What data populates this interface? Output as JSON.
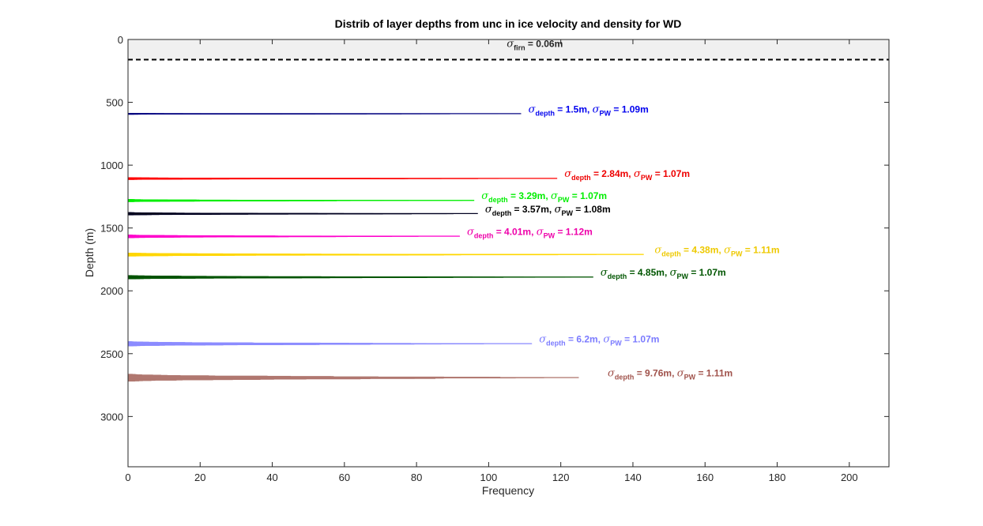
{
  "chart_data": {
    "type": "histogram",
    "title": "Distrib of layer depths from unc in ice velocity and density for WD",
    "xlabel": "Frequency",
    "ylabel": "Depth (m)",
    "xlim": [
      0,
      211
    ],
    "ylim": [
      0,
      3400
    ],
    "y_reversed": true,
    "xticks": [
      0,
      20,
      40,
      60,
      80,
      100,
      120,
      140,
      160,
      180,
      200
    ],
    "yticks": [
      0,
      500,
      1000,
      1500,
      2000,
      2500,
      3000
    ],
    "firn": {
      "depth": 160,
      "shade_color": "#f0f0f0",
      "line_style": "dashed",
      "label": {
        "sym": "σ",
        "sub": "firn",
        "text": " =  0.06m",
        "x": 105,
        "y": 60,
        "color": "#262626"
      }
    },
    "layers": [
      {
        "depth": 590,
        "spread": 1.5,
        "peak": 109,
        "color": "#00007f",
        "annotation": {
          "sym1": "σ",
          "sub1": "depth",
          "mid": " =  1.5m,  ",
          "sym2": "σ",
          "sub2": "PW",
          "end": " =  1.09m",
          "x": 111,
          "y": 580,
          "color": "#0000ee"
        }
      },
      {
        "depth": 1105,
        "spread": 2.84,
        "peak": 119,
        "color": "#ff0000",
        "annotation": {
          "sym1": "σ",
          "sub1": "depth",
          "mid": " =  2.84m,  ",
          "sym2": "σ",
          "sub2": "PW",
          "end": " =  1.07m",
          "x": 121,
          "y": 1095,
          "color": "#ee0000"
        }
      },
      {
        "depth": 1280,
        "spread": 3.29,
        "peak": 96,
        "color": "#00ee00",
        "annotation": {
          "sym1": "σ",
          "sub1": "depth",
          "mid": " =  3.29m,  ",
          "sym2": "σ",
          "sub2": "PW",
          "end": " =  1.07m",
          "x": 98,
          "y": 1270,
          "color": "#00ee00"
        }
      },
      {
        "depth": 1385,
        "spread": 3.57,
        "peak": 97,
        "color": "#000020",
        "annotation": {
          "sym1": "σ",
          "sub1": "depth",
          "mid": " =  3.57m,  ",
          "sym2": "σ",
          "sub2": "PW",
          "end": " =  1.08m",
          "x": 99,
          "y": 1375,
          "color": "#000000"
        }
      },
      {
        "depth": 1565,
        "spread": 4.01,
        "peak": 92,
        "color": "#ff00cc",
        "annotation": {
          "sym1": "σ",
          "sub1": "depth",
          "mid": " =  4.01m,  ",
          "sym2": "σ",
          "sub2": "PW",
          "end": " =  1.12m",
          "x": 94,
          "y": 1555,
          "color": "#ee00aa"
        }
      },
      {
        "depth": 1710,
        "spread": 4.38,
        "peak": 143,
        "color": "#ffd700",
        "annotation": {
          "sym1": "σ",
          "sub1": "depth",
          "mid": " =  4.38m,  ",
          "sym2": "σ",
          "sub2": "PW",
          "end": " =  1.11m",
          "x": 146,
          "y": 1700,
          "color": "#eec900"
        }
      },
      {
        "depth": 1890,
        "spread": 4.85,
        "peak": 129,
        "color": "#005500",
        "annotation": {
          "sym1": "σ",
          "sub1": "depth",
          "mid": " =  4.85m,  ",
          "sym2": "σ",
          "sub2": "PW",
          "end": " =  1.07m",
          "x": 131,
          "y": 1880,
          "color": "#005500"
        }
      },
      {
        "depth": 2420,
        "spread": 6.2,
        "peak": 112,
        "color": "#8c8cff",
        "annotation": {
          "sym1": "σ",
          "sub1": "depth",
          "mid": " =  6.2m,  ",
          "sym2": "σ",
          "sub2": "PW",
          "end": " =  1.07m",
          "x": 114,
          "y": 2410,
          "color": "#7b7bff"
        }
      },
      {
        "depth": 2690,
        "spread": 9.76,
        "peak": 125,
        "color": "#b07870",
        "annotation": {
          "sym1": "σ",
          "sub1": "depth",
          "mid": " =  9.76m,  ",
          "sym2": "σ",
          "sub2": "PW",
          "end": " =  1.11m",
          "x": 133,
          "y": 2680,
          "color": "#a0524b"
        }
      }
    ]
  }
}
